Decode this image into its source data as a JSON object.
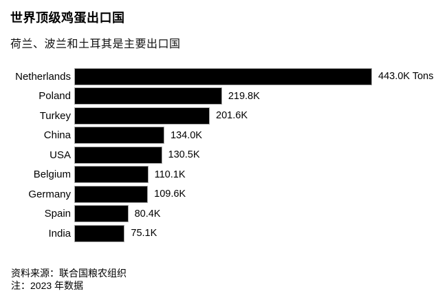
{
  "header": {
    "title": "世界顶级鸡蛋出口国",
    "subtitle": "荷兰、波兰和土耳其是主要出口国"
  },
  "chart_data": {
    "type": "bar",
    "orientation": "horizontal",
    "title": "世界顶级鸡蛋出口国",
    "subtitle": "荷兰、波兰和土耳其是主要出口国",
    "unit": "K Tons",
    "categories": [
      "Netherlands",
      "Poland",
      "Turkey",
      "China",
      "USA",
      "Belgium",
      "Germany",
      "Spain",
      "India"
    ],
    "values": [
      443.0,
      219.8,
      201.6,
      134.0,
      130.5,
      110.1,
      109.6,
      80.4,
      75.1
    ],
    "value_labels": [
      "443.0K Tons",
      "219.8K",
      "201.6K",
      "134.0K",
      "130.5K",
      "110.1K",
      "109.6K",
      "80.4K",
      "75.1K"
    ],
    "xlim": [
      0,
      443
    ],
    "grid": false,
    "legend": false,
    "bar_color": "#000000",
    "bar_border_color": "#a8a8a8",
    "background_color": "#ffffff",
    "text_color": "#000000"
  },
  "footer": {
    "source": "资料来源：联合国粮农组织",
    "note": "注：2023 年数据"
  }
}
